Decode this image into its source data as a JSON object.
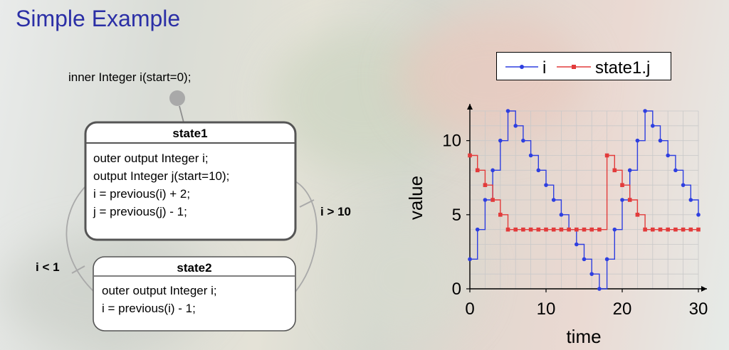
{
  "slide": {
    "title": "Simple Example"
  },
  "state_machine": {
    "initial_declaration": "inner Integer i(start=0);",
    "states": [
      {
        "name": "state1",
        "lines": [
          "outer output Integer i;",
          "output Integer j(start=10);",
          "i = previous(i) + 2;",
          "j = previous(j) - 1;"
        ]
      },
      {
        "name": "state2",
        "lines": [
          "outer output Integer i;",
          "i = previous(i) - 1;"
        ]
      }
    ],
    "transitions": [
      {
        "from": "state1",
        "to": "state2",
        "condition": "i > 10"
      },
      {
        "from": "state2",
        "to": "state1",
        "condition": "i < 1"
      }
    ]
  },
  "chart_data": {
    "type": "line",
    "step": true,
    "xlabel": "time",
    "ylabel": "value",
    "xlim": [
      0,
      30
    ],
    "ylim": [
      0,
      12
    ],
    "x_ticks": [
      "0",
      "10",
      "20",
      "30"
    ],
    "y_ticks": [
      "0",
      "5",
      "10"
    ],
    "grid": true,
    "legend_position": "top",
    "series": [
      {
        "name": "i",
        "color": "#2e3fe0",
        "marker": "circle",
        "x": [
          0,
          1,
          2,
          3,
          4,
          5,
          6,
          7,
          8,
          9,
          10,
          11,
          12,
          13,
          14,
          15,
          16,
          17,
          18,
          19,
          20,
          21,
          22,
          23,
          24,
          25,
          26,
          27,
          28,
          29,
          30
        ],
        "values": [
          2,
          4,
          6,
          8,
          10,
          12,
          11,
          10,
          9,
          8,
          7,
          6,
          5,
          4,
          3,
          2,
          1,
          0,
          2,
          4,
          6,
          8,
          10,
          12,
          11,
          10,
          9,
          8,
          7,
          6,
          5
        ]
      },
      {
        "name": "state1.j",
        "color": "#e23b3b",
        "marker": "square",
        "x": [
          0,
          1,
          2,
          3,
          4,
          5,
          6,
          7,
          8,
          9,
          10,
          11,
          12,
          13,
          14,
          15,
          16,
          17,
          18,
          19,
          20,
          21,
          22,
          23,
          24,
          25,
          26,
          27,
          28,
          29,
          30
        ],
        "values": [
          9,
          8,
          7,
          6,
          5,
          4,
          4,
          4,
          4,
          4,
          4,
          4,
          4,
          4,
          4,
          4,
          4,
          4,
          9,
          8,
          7,
          6,
          5,
          4,
          4,
          4,
          4,
          4,
          4,
          4,
          4
        ]
      }
    ]
  }
}
